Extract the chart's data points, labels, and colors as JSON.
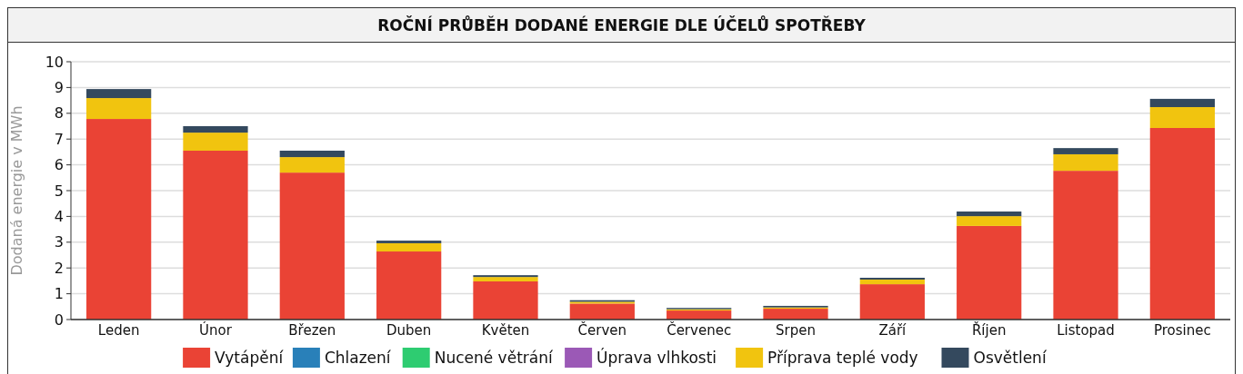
{
  "chart_data": {
    "type": "bar",
    "title": "ROČNÍ PRŮBĚH DODANÉ ENERGIE DLE ÚČELŮ SPOTŘEBY",
    "ylabel": "Dodaná energie v MWh",
    "categories": [
      "Leden",
      "Únor",
      "Březen",
      "Duben",
      "Květen",
      "Červen",
      "Červenec",
      "Srpen",
      "Září",
      "Říjen",
      "Listopad",
      "Prosinec"
    ],
    "stacked": true,
    "ylim": [
      0,
      10
    ],
    "yticks": [
      0,
      1,
      2,
      3,
      4,
      5,
      6,
      7,
      8,
      9,
      10
    ],
    "grid": "y",
    "legend": "bottom",
    "series": [
      {
        "name": "Vytápění",
        "color": "#ea4335",
        "values": [
          7.78,
          6.55,
          5.7,
          2.64,
          1.48,
          0.62,
          0.35,
          0.42,
          1.37,
          3.63,
          5.77,
          7.43
        ]
      },
      {
        "name": "Chlazení",
        "color": "#2980b9",
        "values": [
          0,
          0,
          0,
          0,
          0,
          0,
          0,
          0,
          0,
          0,
          0,
          0
        ]
      },
      {
        "name": "Nucené větrání",
        "color": "#2ecc71",
        "values": [
          0,
          0,
          0,
          0,
          0,
          0,
          0,
          0,
          0,
          0,
          0,
          0
        ]
      },
      {
        "name": "Úprava vlhkosti",
        "color": "#9b59b6",
        "values": [
          0,
          0,
          0,
          0,
          0,
          0,
          0,
          0,
          0,
          0,
          0,
          0
        ]
      },
      {
        "name": "Příprava teplé vody",
        "color": "#f1c40f",
        "values": [
          0.81,
          0.7,
          0.6,
          0.32,
          0.17,
          0.07,
          0.05,
          0.05,
          0.18,
          0.38,
          0.64,
          0.81
        ]
      },
      {
        "name": "Osvětlení",
        "color": "#34495e",
        "values": [
          0.35,
          0.25,
          0.25,
          0.1,
          0.07,
          0.06,
          0.05,
          0.06,
          0.07,
          0.18,
          0.24,
          0.32
        ]
      }
    ]
  }
}
